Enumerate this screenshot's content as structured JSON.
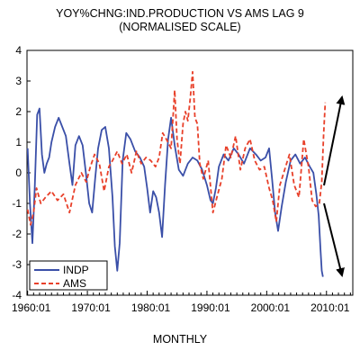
{
  "chart_data": {
    "type": "line",
    "title": "YOY%CHNG:IND.PRODUCTION VS AMS LAG 9",
    "subtitle": "(NORMALISED SCALE)",
    "xlabel": "MONTHLY",
    "ylabel": "",
    "xlim": [
      1959.9,
      2014.4
    ],
    "ylim": [
      -4,
      4
    ],
    "yticks": [
      -4,
      -3,
      -2,
      -1,
      0,
      1,
      2,
      3,
      4
    ],
    "xticks": [
      1960,
      1970,
      1980,
      1990,
      2000,
      2010
    ],
    "xtick_labels": [
      "1960:01",
      "1970:01",
      "1980:01",
      "1990:01",
      "2000:01",
      "2010:01"
    ],
    "grid": false,
    "legend_position": "bottom-left",
    "series": [
      {
        "name": "INDP",
        "color": "#3a4fa8",
        "style": "solid",
        "x": [
          1960.0,
          1960.4,
          1960.8,
          1961.2,
          1961.6,
          1962.0,
          1962.4,
          1962.8,
          1963.2,
          1963.6,
          1964.0,
          1964.6,
          1965.2,
          1965.8,
          1966.4,
          1967.0,
          1967.5,
          1968.0,
          1968.6,
          1969.2,
          1969.8,
          1970.3,
          1970.8,
          1971.3,
          1971.8,
          1972.4,
          1973.0,
          1973.6,
          1974.2,
          1974.6,
          1975.0,
          1975.4,
          1975.9,
          1976.5,
          1977.2,
          1978.0,
          1978.8,
          1979.5,
          1980.0,
          1980.5,
          1981.0,
          1981.5,
          1982.0,
          1982.5,
          1983.0,
          1983.5,
          1984.0,
          1984.6,
          1985.3,
          1986.0,
          1986.8,
          1987.6,
          1988.4,
          1989.2,
          1990.0,
          1990.6,
          1991.0,
          1991.5,
          1992.0,
          1992.8,
          1993.6,
          1994.5,
          1995.3,
          1996.2,
          1997.2,
          1998.2,
          1999.0,
          1999.8,
          2000.4,
          2000.9,
          2001.4,
          2001.9,
          2002.5,
          2003.2,
          2004.0,
          2004.8,
          2005.6,
          2006.4,
          2007.2,
          2007.8,
          2008.3,
          2008.7,
          2009.0,
          2009.2,
          2009.4
        ],
        "values": [
          0.8,
          -1.0,
          -2.3,
          -0.5,
          1.9,
          2.1,
          0.6,
          0.0,
          0.3,
          0.5,
          1.0,
          1.5,
          1.8,
          1.5,
          1.2,
          0.3,
          -0.4,
          0.9,
          1.2,
          0.9,
          -0.1,
          -1.0,
          -1.3,
          -0.2,
          0.8,
          1.4,
          1.5,
          0.8,
          -0.8,
          -2.4,
          -3.2,
          -2.3,
          0.4,
          1.3,
          1.1,
          0.7,
          0.5,
          0.2,
          -0.5,
          -1.3,
          -0.6,
          -0.8,
          -1.3,
          -2.1,
          -0.4,
          1.1,
          1.8,
          0.9,
          0.1,
          -0.1,
          0.3,
          0.5,
          0.4,
          0.1,
          -0.4,
          -0.9,
          -1.0,
          -0.5,
          0.2,
          0.6,
          0.4,
          0.8,
          0.6,
          0.3,
          0.8,
          0.6,
          0.4,
          0.5,
          0.8,
          -0.2,
          -1.3,
          -1.9,
          -1.1,
          -0.3,
          0.4,
          0.6,
          0.3,
          0.5,
          0.2,
          0.0,
          -0.7,
          -1.4,
          -2.5,
          -3.2,
          -3.4
        ]
      },
      {
        "name": "AMS",
        "color": "#e8402a",
        "style": "dashed",
        "x": [
          1960.0,
          1960.5,
          1961.0,
          1961.5,
          1962.2,
          1963.0,
          1964.0,
          1965.0,
          1966.0,
          1967.0,
          1968.0,
          1969.0,
          1969.8,
          1970.5,
          1971.2,
          1972.0,
          1972.8,
          1973.6,
          1974.2,
          1975.0,
          1975.8,
          1976.6,
          1977.4,
          1978.2,
          1979.0,
          1979.8,
          1980.6,
          1981.4,
          1982.0,
          1982.6,
          1983.2,
          1984.0,
          1984.6,
          1985.0,
          1985.5,
          1986.0,
          1986.4,
          1986.8,
          1987.2,
          1987.6,
          1988.0,
          1988.4,
          1988.8,
          1989.4,
          1990.2,
          1991.0,
          1991.8,
          1992.5,
          1993.2,
          1994.0,
          1994.8,
          1995.6,
          1996.4,
          1997.2,
          1998.0,
          1998.8,
          1999.6,
          2000.4,
          2001.0,
          2001.6,
          2002.2,
          2003.0,
          2003.8,
          2004.6,
          2005.4,
          2006.2,
          2007.0,
          2007.6,
          2008.2,
          2008.8,
          2009.2,
          2009.5,
          2009.8
        ],
        "values": [
          -1.2,
          -1.7,
          -1.3,
          -0.5,
          -1.0,
          -0.8,
          -0.6,
          -0.9,
          -0.7,
          -1.3,
          -0.4,
          0.0,
          -0.3,
          0.2,
          0.6,
          0.3,
          -0.6,
          0.2,
          0.4,
          0.7,
          0.3,
          0.6,
          0.0,
          0.7,
          0.3,
          0.5,
          0.4,
          0.2,
          0.5,
          1.3,
          1.1,
          0.8,
          2.7,
          1.1,
          0.3,
          1.6,
          2.0,
          1.7,
          2.4,
          3.3,
          1.8,
          1.6,
          0.3,
          -0.2,
          0.4,
          -1.3,
          -0.7,
          -0.2,
          0.9,
          0.5,
          1.2,
          0.1,
          0.8,
          1.1,
          0.4,
          0.1,
          0.2,
          -0.5,
          -0.9,
          -1.6,
          -0.4,
          0.1,
          0.6,
          -0.4,
          -0.8,
          1.1,
          0.2,
          -0.9,
          -1.1,
          -1.0,
          -0.3,
          1.2,
          2.3
        ]
      }
    ],
    "annotations": [
      {
        "type": "arrow",
        "direction": "up"
      },
      {
        "type": "arrow",
        "direction": "down"
      }
    ]
  }
}
